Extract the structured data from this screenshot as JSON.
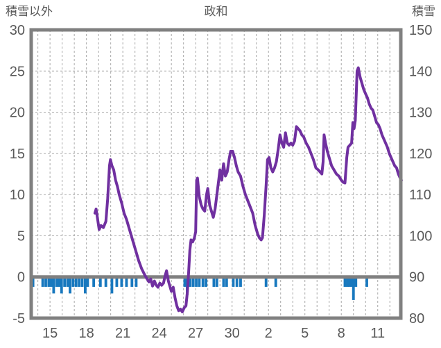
{
  "header": {
    "left_axis_title": "積雪以外",
    "title": "政和",
    "right_axis_title": "積雪"
  },
  "colors": {
    "snow_line": "#7030A0",
    "bars": "#1878BE",
    "frame": "#808080",
    "grid": "#A8A8A8",
    "text": "#595959",
    "background": "#FFFFFF"
  },
  "chart_data": {
    "type": "line",
    "title": "政和",
    "legend": "none",
    "grid": "dashed, vertical per day, horizontal per 5 left-units",
    "left_axis": {
      "label": "積雪以外",
      "min": -5,
      "max": 30,
      "tick_labels": [
        "30",
        "25",
        "20",
        "15",
        "10",
        "5",
        "0",
        "-5"
      ],
      "tick_values": [
        30,
        25,
        20,
        15,
        10,
        5,
        0,
        -5
      ]
    },
    "right_axis": {
      "label": "積雪",
      "min": 80,
      "max": 150,
      "tick_labels": [
        "150",
        "140",
        "130",
        "120",
        "110",
        "100",
        "90",
        "80"
      ],
      "tick_values": [
        150,
        140,
        130,
        120,
        110,
        100,
        90,
        80
      ]
    },
    "x_axis": {
      "tick_labels": [
        "15",
        "18",
        "21",
        "24",
        "27",
        "30",
        "2",
        "5",
        "8",
        "11"
      ],
      "tick_days": [
        15,
        18,
        21,
        24,
        27,
        30,
        33,
        36,
        39,
        42
      ],
      "min": 13.45,
      "max": 43.9,
      "gridline_day_start": 14,
      "gridline_day_end": 43,
      "zero_line_left_value": 0
    },
    "series": [
      {
        "name": "積雪",
        "axis": "right",
        "type": "line",
        "points": [
          [
            18.7,
            105.5
          ],
          [
            18.8,
            106.5
          ],
          [
            19.05,
            101.5
          ],
          [
            19.2,
            102.5
          ],
          [
            19.4,
            102.0
          ],
          [
            19.6,
            103.5
          ],
          [
            19.75,
            109.0
          ],
          [
            19.9,
            117.0
          ],
          [
            19.98,
            118.5
          ],
          [
            20.1,
            117.0
          ],
          [
            20.25,
            116.0
          ],
          [
            20.4,
            113.5
          ],
          [
            20.55,
            112.0
          ],
          [
            20.7,
            110.0
          ],
          [
            20.9,
            108.0
          ],
          [
            21.1,
            105.5
          ],
          [
            21.3,
            104.0
          ],
          [
            21.5,
            102.0
          ],
          [
            21.7,
            100.0
          ],
          [
            21.9,
            98.0
          ],
          [
            22.1,
            96.0
          ],
          [
            22.3,
            94.0
          ],
          [
            22.55,
            92.0
          ],
          [
            22.8,
            90.5
          ],
          [
            23.0,
            89.5
          ],
          [
            23.15,
            88.8
          ],
          [
            23.3,
            89.5
          ],
          [
            23.45,
            87.8
          ],
          [
            23.6,
            89.0
          ],
          [
            23.75,
            88.0
          ],
          [
            23.9,
            87.5
          ],
          [
            24.05,
            88.5
          ],
          [
            24.2,
            88.0
          ],
          [
            24.35,
            88.5
          ],
          [
            24.5,
            90.5
          ],
          [
            24.6,
            91.5
          ],
          [
            24.75,
            89.0
          ],
          [
            24.9,
            87.5
          ],
          [
            25.0,
            86.5
          ],
          [
            25.15,
            87.5
          ],
          [
            25.3,
            85.0
          ],
          [
            25.45,
            83.0
          ],
          [
            25.6,
            81.8
          ],
          [
            25.75,
            82.2
          ],
          [
            25.9,
            81.5
          ],
          [
            26.05,
            82.5
          ],
          [
            26.2,
            83.0
          ],
          [
            26.32,
            86.5
          ],
          [
            26.42,
            91.0
          ],
          [
            26.52,
            96.5
          ],
          [
            26.62,
            99.0
          ],
          [
            26.75,
            98.5
          ],
          [
            26.9,
            99.5
          ],
          [
            27.0,
            101.0
          ],
          [
            27.08,
            113.5
          ],
          [
            27.15,
            114.0
          ],
          [
            27.3,
            109.5
          ],
          [
            27.45,
            107.5
          ],
          [
            27.6,
            106.5
          ],
          [
            27.75,
            106.0
          ],
          [
            27.9,
            110.0
          ],
          [
            28.0,
            111.5
          ],
          [
            28.15,
            107.5
          ],
          [
            28.3,
            106.0
          ],
          [
            28.45,
            104.5
          ],
          [
            28.6,
            106.5
          ],
          [
            28.75,
            110.0
          ],
          [
            28.9,
            113.5
          ],
          [
            29.0,
            116.0
          ],
          [
            29.15,
            113.5
          ],
          [
            29.3,
            117.5
          ],
          [
            29.45,
            114.5
          ],
          [
            29.6,
            115.5
          ],
          [
            29.75,
            118.5
          ],
          [
            29.88,
            120.5
          ],
          [
            30.05,
            120.5
          ],
          [
            30.2,
            119.0
          ],
          [
            30.35,
            117.0
          ],
          [
            30.5,
            115.5
          ],
          [
            30.7,
            114.5
          ],
          [
            30.9,
            112.0
          ],
          [
            31.1,
            110.0
          ],
          [
            31.3,
            108.5
          ],
          [
            31.5,
            107.0
          ],
          [
            31.7,
            105.5
          ],
          [
            31.9,
            102.5
          ],
          [
            32.1,
            100.5
          ],
          [
            32.25,
            99.5
          ],
          [
            32.4,
            99.0
          ],
          [
            32.5,
            99.5
          ],
          [
            32.65,
            105.0
          ],
          [
            32.8,
            112.0
          ],
          [
            32.92,
            118.5
          ],
          [
            33.05,
            119.0
          ],
          [
            33.2,
            116.5
          ],
          [
            33.35,
            115.5
          ],
          [
            33.5,
            116.5
          ],
          [
            33.65,
            118.0
          ],
          [
            33.8,
            121.0
          ],
          [
            33.95,
            124.5
          ],
          [
            34.1,
            122.5
          ],
          [
            34.25,
            121.5
          ],
          [
            34.4,
            125.0
          ],
          [
            34.55,
            122.5
          ],
          [
            34.7,
            122.0
          ],
          [
            34.85,
            122.5
          ],
          [
            35.0,
            122.0
          ],
          [
            35.15,
            123.0
          ],
          [
            35.3,
            126.5
          ],
          [
            35.45,
            126.0
          ],
          [
            35.6,
            125.5
          ],
          [
            35.75,
            124.5
          ],
          [
            35.9,
            124.0
          ],
          [
            36.1,
            122.5
          ],
          [
            36.3,
            121.5
          ],
          [
            36.5,
            120.0
          ],
          [
            36.7,
            118.5
          ],
          [
            36.9,
            116.5
          ],
          [
            37.1,
            116.0
          ],
          [
            37.25,
            115.5
          ],
          [
            37.4,
            115.0
          ],
          [
            37.5,
            118.0
          ],
          [
            37.58,
            124.5
          ],
          [
            37.7,
            122.5
          ],
          [
            37.85,
            120.5
          ],
          [
            38.0,
            119.0
          ],
          [
            38.2,
            117.0
          ],
          [
            38.4,
            116.0
          ],
          [
            38.6,
            115.0
          ],
          [
            38.8,
            114.5
          ],
          [
            39.0,
            113.5
          ],
          [
            39.15,
            113.0
          ],
          [
            39.3,
            112.8
          ],
          [
            39.45,
            119.0
          ],
          [
            39.55,
            121.5
          ],
          [
            39.7,
            122.0
          ],
          [
            39.85,
            122.5
          ],
          [
            39.95,
            127.5
          ],
          [
            40.05,
            126.0
          ],
          [
            40.15,
            128.0
          ],
          [
            40.3,
            140.0
          ],
          [
            40.4,
            140.8
          ],
          [
            40.55,
            138.5
          ],
          [
            40.7,
            137.0
          ],
          [
            40.85,
            135.5
          ],
          [
            41.0,
            134.5
          ],
          [
            41.15,
            133.5
          ],
          [
            41.3,
            132.0
          ],
          [
            41.45,
            131.0
          ],
          [
            41.6,
            130.5
          ],
          [
            41.75,
            129.0
          ],
          [
            41.9,
            127.5
          ],
          [
            42.05,
            127.0
          ],
          [
            42.2,
            126.0
          ],
          [
            42.35,
            124.5
          ],
          [
            42.5,
            123.5
          ],
          [
            42.65,
            122.5
          ],
          [
            42.8,
            121.5
          ],
          [
            42.95,
            120.0
          ],
          [
            43.1,
            119.0
          ],
          [
            43.25,
            118.0
          ],
          [
            43.4,
            117.0
          ],
          [
            43.55,
            116.5
          ],
          [
            43.7,
            115.0
          ],
          [
            43.85,
            114.0
          ],
          [
            43.95,
            113.5
          ]
        ]
      },
      {
        "name": "積雪以外",
        "axis": "left",
        "type": "bar",
        "bar_width_days": 0.22,
        "points": [
          [
            13.6,
            -1.2
          ],
          [
            14.4,
            -1.2
          ],
          [
            14.65,
            -1.2
          ],
          [
            14.9,
            -1.2
          ],
          [
            15.1,
            -1.2
          ],
          [
            15.3,
            -2.0
          ],
          [
            15.55,
            -1.2
          ],
          [
            15.75,
            -1.2
          ],
          [
            15.95,
            -2.0
          ],
          [
            16.2,
            -1.2
          ],
          [
            16.45,
            -1.2
          ],
          [
            16.65,
            -2.0
          ],
          [
            16.9,
            -1.2
          ],
          [
            17.15,
            -1.2
          ],
          [
            17.4,
            -1.2
          ],
          [
            17.65,
            -1.2
          ],
          [
            17.9,
            -2.0
          ],
          [
            18.1,
            -1.2
          ],
          [
            18.6,
            -1.2
          ],
          [
            19.15,
            -1.2
          ],
          [
            19.6,
            -1.2
          ],
          [
            20.1,
            -2.0
          ],
          [
            20.5,
            -1.2
          ],
          [
            20.9,
            -1.2
          ],
          [
            21.3,
            -1.2
          ],
          [
            21.75,
            -1.2
          ],
          [
            22.1,
            -1.2
          ],
          [
            26.1,
            -1.2
          ],
          [
            26.3,
            -2.2
          ],
          [
            26.55,
            -1.2
          ],
          [
            26.8,
            -1.2
          ],
          [
            27.05,
            -1.2
          ],
          [
            27.3,
            -1.2
          ],
          [
            27.6,
            -1.2
          ],
          [
            27.85,
            -1.2
          ],
          [
            28.5,
            -1.2
          ],
          [
            28.75,
            -1.2
          ],
          [
            29.3,
            -1.2
          ],
          [
            29.55,
            -1.2
          ],
          [
            30.1,
            -1.2
          ],
          [
            30.4,
            -1.2
          ],
          [
            30.7,
            -1.2
          ],
          [
            32.8,
            -1.2
          ],
          [
            33.6,
            -1.2
          ],
          [
            39.3,
            -1.2
          ],
          [
            39.5,
            -1.2
          ],
          [
            39.65,
            -1.2
          ],
          [
            39.85,
            -1.2
          ],
          [
            40.0,
            -2.8
          ],
          [
            40.2,
            -1.2
          ],
          [
            41.1,
            -1.2
          ]
        ]
      }
    ]
  }
}
